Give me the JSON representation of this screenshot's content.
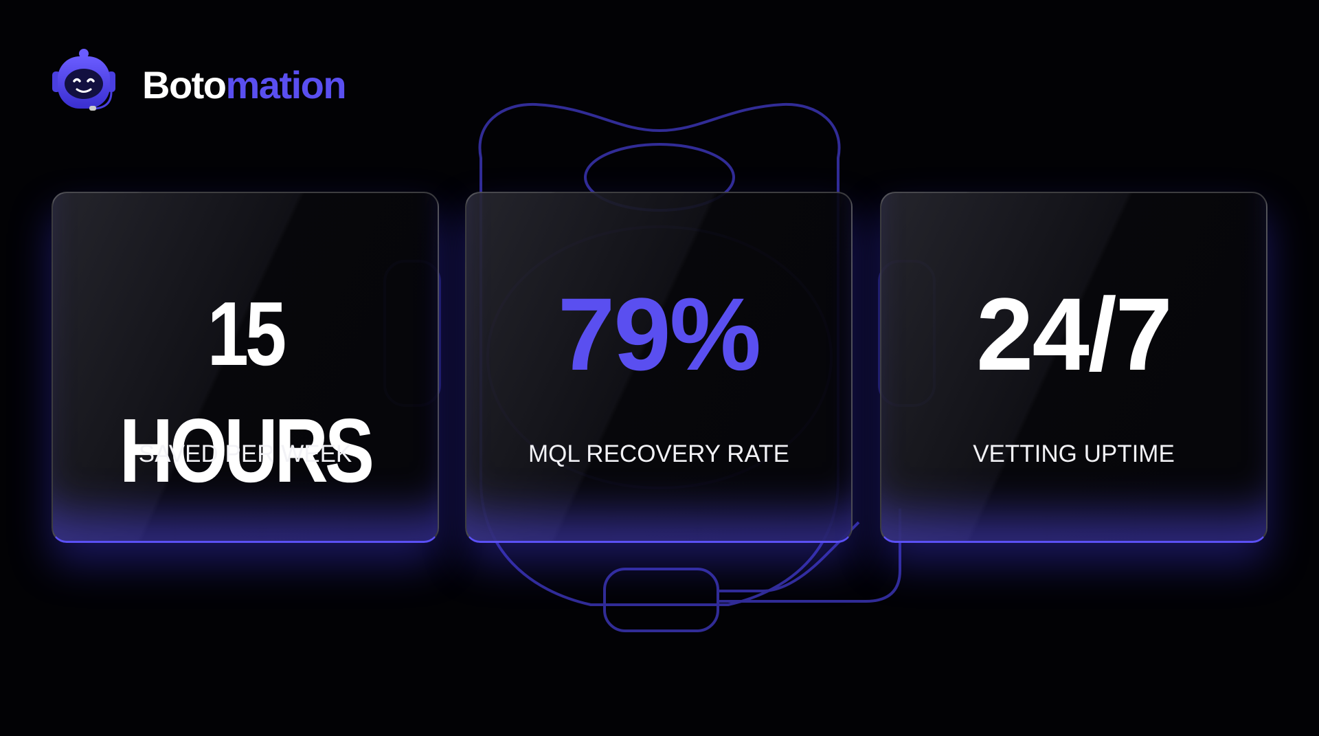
{
  "brand": {
    "primary": "Boto",
    "accent": "mation"
  },
  "cards": [
    {
      "value": "15 HOURS",
      "label": "SAVED PER WEEK"
    },
    {
      "value": "79%",
      "label": "MQL RECOVERY RATE"
    },
    {
      "value": "24/7",
      "label": "VETTING UPTIME"
    }
  ]
}
